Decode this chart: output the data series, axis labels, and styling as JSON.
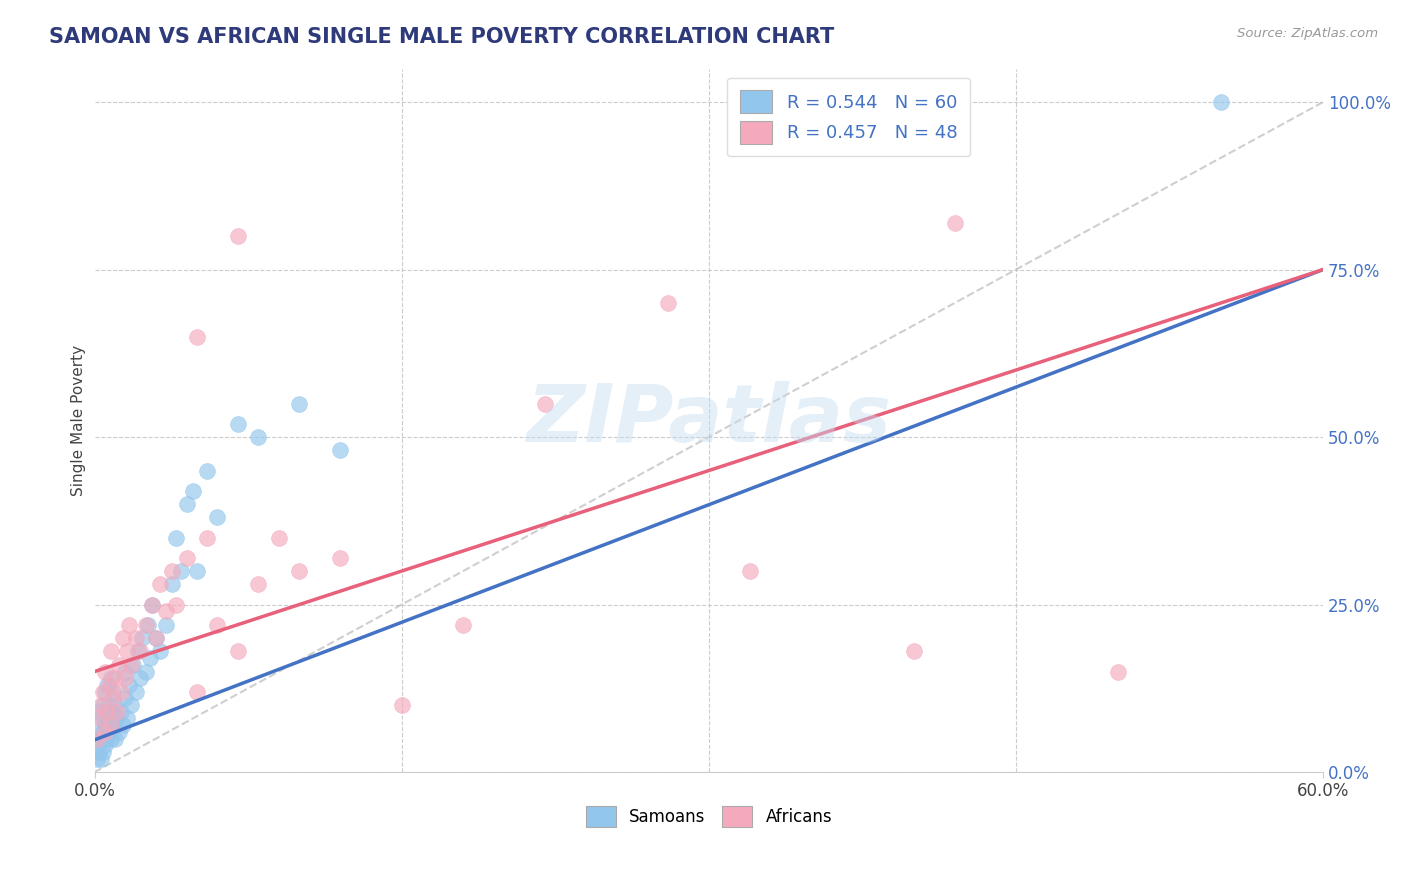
{
  "title": "SAMOAN VS AFRICAN SINGLE MALE POVERTY CORRELATION CHART",
  "source": "Source: ZipAtlas.com",
  "ylabel_label": "Single Male Poverty",
  "x_min": 0.0,
  "x_max": 0.6,
  "y_min": 0.0,
  "y_max": 1.05,
  "y_tick_labels": [
    "0.0%",
    "25.0%",
    "50.0%",
    "75.0%",
    "100.0%"
  ],
  "y_tick_values": [
    0.0,
    0.25,
    0.5,
    0.75,
    1.0
  ],
  "samoan_color": "#93C6EC",
  "african_color": "#F4AABC",
  "samoan_line_color": "#4472C4",
  "african_line_color": "#E8607A",
  "legend_samoan_label": "R = 0.544   N = 60",
  "legend_african_label": "R = 0.457   N = 48",
  "watermark": "ZIPatlas",
  "bottom_legend_samoan": "Samoans",
  "bottom_legend_african": "Africans",
  "samoan_x": [
    0.001,
    0.001,
    0.002,
    0.002,
    0.002,
    0.003,
    0.003,
    0.003,
    0.004,
    0.004,
    0.004,
    0.005,
    0.005,
    0.005,
    0.006,
    0.006,
    0.006,
    0.007,
    0.007,
    0.008,
    0.008,
    0.008,
    0.009,
    0.009,
    0.01,
    0.01,
    0.011,
    0.012,
    0.013,
    0.014,
    0.015,
    0.015,
    0.016,
    0.017,
    0.018,
    0.019,
    0.02,
    0.021,
    0.022,
    0.023,
    0.025,
    0.026,
    0.027,
    0.028,
    0.03,
    0.032,
    0.035,
    0.038,
    0.04,
    0.042,
    0.045,
    0.048,
    0.05,
    0.055,
    0.06,
    0.07,
    0.08,
    0.1,
    0.12,
    0.55
  ],
  "samoan_y": [
    0.02,
    0.04,
    0.03,
    0.06,
    0.09,
    0.02,
    0.05,
    0.08,
    0.03,
    0.06,
    0.1,
    0.04,
    0.07,
    0.12,
    0.05,
    0.08,
    0.13,
    0.06,
    0.1,
    0.05,
    0.09,
    0.14,
    0.07,
    0.12,
    0.05,
    0.1,
    0.08,
    0.06,
    0.09,
    0.07,
    0.11,
    0.15,
    0.08,
    0.13,
    0.1,
    0.16,
    0.12,
    0.18,
    0.14,
    0.2,
    0.15,
    0.22,
    0.17,
    0.25,
    0.2,
    0.18,
    0.22,
    0.28,
    0.35,
    0.3,
    0.4,
    0.42,
    0.3,
    0.45,
    0.38,
    0.52,
    0.5,
    0.55,
    0.48,
    1.0
  ],
  "african_x": [
    0.001,
    0.002,
    0.003,
    0.004,
    0.005,
    0.005,
    0.006,
    0.007,
    0.008,
    0.008,
    0.009,
    0.01,
    0.011,
    0.012,
    0.013,
    0.014,
    0.015,
    0.016,
    0.017,
    0.018,
    0.02,
    0.022,
    0.025,
    0.028,
    0.03,
    0.032,
    0.035,
    0.038,
    0.04,
    0.045,
    0.05,
    0.055,
    0.06,
    0.07,
    0.08,
    0.09,
    0.1,
    0.12,
    0.15,
    0.18,
    0.22,
    0.28,
    0.32,
    0.4,
    0.42,
    0.5,
    0.05,
    0.07
  ],
  "african_y": [
    0.05,
    0.08,
    0.1,
    0.12,
    0.06,
    0.15,
    0.09,
    0.13,
    0.07,
    0.18,
    0.11,
    0.14,
    0.09,
    0.16,
    0.12,
    0.2,
    0.14,
    0.18,
    0.22,
    0.16,
    0.2,
    0.18,
    0.22,
    0.25,
    0.2,
    0.28,
    0.24,
    0.3,
    0.25,
    0.32,
    0.12,
    0.35,
    0.22,
    0.18,
    0.28,
    0.35,
    0.3,
    0.32,
    0.1,
    0.22,
    0.55,
    0.7,
    0.3,
    0.18,
    0.82,
    0.15,
    0.65,
    0.8
  ]
}
